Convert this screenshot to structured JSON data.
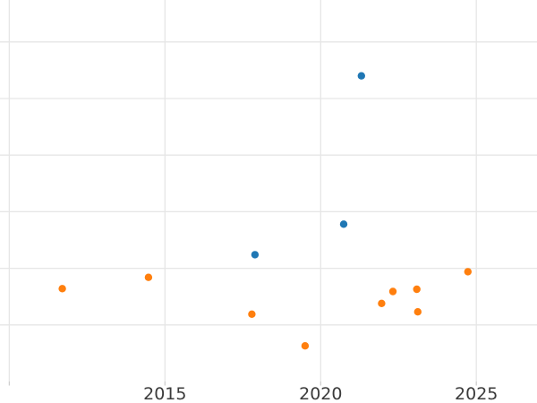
{
  "chart_data": {
    "type": "scatter",
    "title": "",
    "xlabel": "",
    "ylabel": "",
    "grid": true,
    "legend_visible": false,
    "background_color": "#ffffff",
    "grid_color": "#e6e6e6",
    "tick_mark_color": "#cfcfcf",
    "tick_label_color": "#3b3b3b",
    "marker_diameter_px": 8.4,
    "x_axis": {
      "range": [
        2009.7,
        2026.95
      ],
      "gridline_years": [
        2010,
        2015,
        2020,
        2025
      ],
      "ticks": [
        2015,
        2020,
        2025
      ],
      "tick_labels": [
        "2015",
        "2020",
        "2025"
      ]
    },
    "y_axis": {
      "range": [
        -0.38,
        6.74
      ],
      "gridline_units": [
        1,
        2,
        3,
        4,
        5,
        6
      ],
      "plot_bottom_unit": 0,
      "tick_labels": []
    },
    "series": [
      {
        "name": "blue-series",
        "color": "#1f77b4",
        "points": [
          {
            "x": 2021.31,
            "y": 5.4
          },
          {
            "x": 2020.74,
            "y": 2.78
          },
          {
            "x": 2017.89,
            "y": 2.24
          }
        ]
      },
      {
        "name": "orange-series",
        "color": "#ff7f0e",
        "points": [
          {
            "x": 2011.7,
            "y": 1.64
          },
          {
            "x": 2014.47,
            "y": 1.84
          },
          {
            "x": 2017.79,
            "y": 1.19
          },
          {
            "x": 2019.5,
            "y": 0.63
          },
          {
            "x": 2021.96,
            "y": 1.38
          },
          {
            "x": 2022.32,
            "y": 1.59
          },
          {
            "x": 2023.09,
            "y": 1.63
          },
          {
            "x": 2023.12,
            "y": 1.23
          },
          {
            "x": 2024.73,
            "y": 1.94
          }
        ]
      }
    ]
  }
}
